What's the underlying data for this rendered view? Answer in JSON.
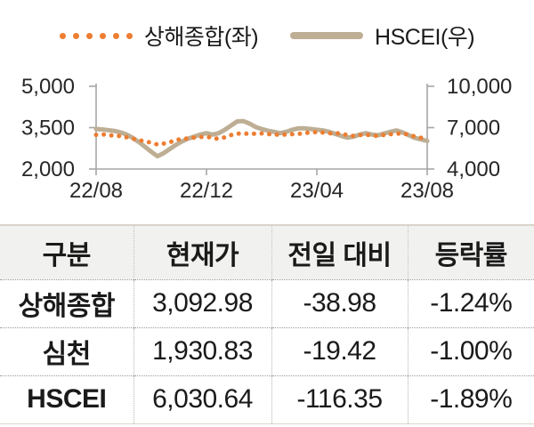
{
  "colors": {
    "orange": "#ED7D31",
    "tan": "#BDAE94",
    "axis_line": "#A6A6A6",
    "axis_text": "#262626",
    "header_bg": "#F1F1EF"
  },
  "legend": {
    "shanghai_label": "상해종합(좌)",
    "hscei_label": "HSCEI(우)"
  },
  "chart_data": {
    "type": "line",
    "title": "",
    "xlabel": "",
    "ylabel_left": "",
    "ylabel_right": "",
    "grid": false,
    "legend_position": "top",
    "x_tick_labels": [
      "22/08",
      "22/12",
      "23/04",
      "23/08"
    ],
    "left_axis": {
      "min": 2000,
      "max": 5000,
      "tick_labels": [
        "5,000",
        "3,500",
        "2,000"
      ]
    },
    "right_axis": {
      "min": 4000,
      "max": 10000,
      "tick_labels": [
        "10,000",
        "7,000",
        "4,000"
      ]
    },
    "series": [
      {
        "name": "상해종합(좌)",
        "axis": "left",
        "line_style": "dotted",
        "color": "#ED7D31",
        "values": [
          3240,
          3260,
          3230,
          3210,
          3190,
          3150,
          3100,
          3050,
          3000,
          2950,
          2890,
          2920,
          2970,
          3050,
          3090,
          3110,
          3140,
          3160,
          3170,
          3130,
          3090,
          3150,
          3230,
          3280,
          3290,
          3270,
          3280,
          3290,
          3270,
          3250,
          3240,
          3250,
          3260,
          3270,
          3300,
          3330,
          3340,
          3320,
          3290,
          3310,
          3270,
          3230,
          3200,
          3230,
          3250,
          3210,
          3200,
          3240,
          3260,
          3280,
          3290,
          3240,
          3180,
          3130,
          3093
        ]
      },
      {
        "name": "HSCEI(우)",
        "axis": "right",
        "line_style": "solid",
        "color": "#BDAE94",
        "values": [
          6900,
          6870,
          6820,
          6760,
          6650,
          6500,
          6250,
          5950,
          5600,
          5250,
          4930,
          5150,
          5450,
          5750,
          6000,
          6200,
          6350,
          6500,
          6600,
          6500,
          6600,
          6850,
          7150,
          7450,
          7480,
          7300,
          7050,
          6900,
          6780,
          6700,
          6600,
          6700,
          6850,
          6950,
          6950,
          6900,
          6850,
          6800,
          6700,
          6550,
          6400,
          6280,
          6350,
          6500,
          6600,
          6500,
          6450,
          6580,
          6700,
          6800,
          6650,
          6450,
          6250,
          6150,
          6031
        ]
      }
    ]
  },
  "table": {
    "headers": [
      "구분",
      "현재가",
      "전일 대비",
      "등락률"
    ],
    "rows": [
      {
        "name": "상해종합",
        "price": "3,092.98",
        "change": "-38.98",
        "pct": "-1.24%"
      },
      {
        "name": "심천",
        "price": "1,930.83",
        "change": "-19.42",
        "pct": "-1.00%"
      },
      {
        "name": "HSCEI",
        "price": "6,030.64",
        "change": "-116.35",
        "pct": "-1.89%"
      }
    ]
  }
}
